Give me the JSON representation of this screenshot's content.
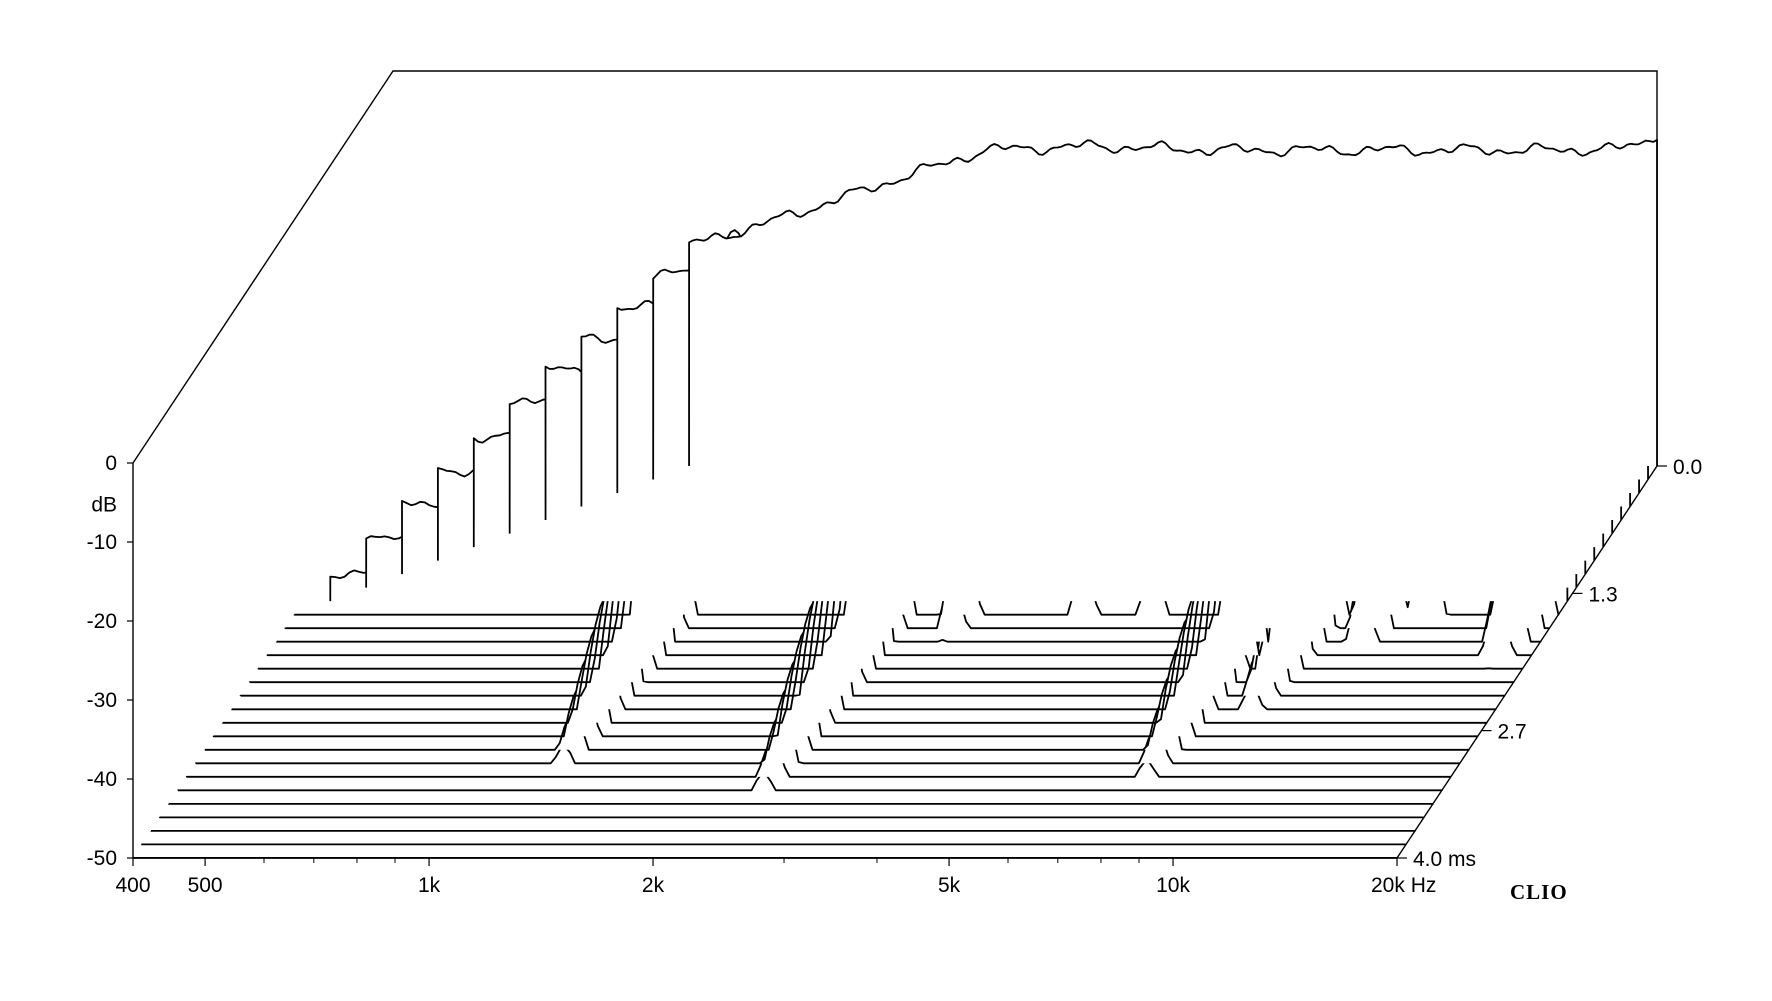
{
  "chart_data": {
    "type": "waterfall",
    "title": "",
    "x_axis": {
      "unit": "Hz",
      "scale": "log",
      "range": [
        400,
        20000
      ],
      "tick_labels": [
        {
          "value": 400,
          "label": "400"
        },
        {
          "value": 500,
          "label": "500"
        },
        {
          "value": 1000,
          "label": "1k"
        },
        {
          "value": 2000,
          "label": "2k"
        },
        {
          "value": 5000,
          "label": "5k"
        },
        {
          "value": 10000,
          "label": "10k"
        },
        {
          "value": 20000,
          "label": "20k Hz"
        }
      ],
      "minor_ticks": [
        600,
        700,
        800,
        900,
        3000,
        4000,
        6000,
        7000,
        8000,
        9000
      ]
    },
    "y_axis": {
      "unit": "dB",
      "label": "dB",
      "range": [
        -50,
        0
      ],
      "tick_labels": [
        {
          "value": 0,
          "label": "0"
        },
        {
          "value": -10,
          "label": "-10"
        },
        {
          "value": -20,
          "label": "-20"
        },
        {
          "value": -30,
          "label": "-30"
        },
        {
          "value": -40,
          "label": "-40"
        },
        {
          "value": -50,
          "label": "-50"
        }
      ]
    },
    "z_axis": {
      "unit": "ms",
      "range": [
        0.0,
        4.0
      ],
      "tick_labels": [
        {
          "value": 0.0,
          "label": "0.0"
        },
        {
          "value": 1.3,
          "label": "1.3"
        },
        {
          "value": 2.7,
          "label": "2.7"
        },
        {
          "value": 4.0,
          "label": "4.0  ms"
        }
      ]
    },
    "slices": {
      "count": 30,
      "time_step_ms": 0.1379,
      "floor_db": -50,
      "onset_hz_first": 1000,
      "onset_hz_last": 400,
      "onset_shift_slices": 11,
      "initial_response_db": [
        [
          1000,
          -22
        ],
        [
          1200,
          -20
        ],
        [
          1500,
          -17
        ],
        [
          2000,
          -13
        ],
        [
          2500,
          -10
        ],
        [
          3000,
          -9.7
        ],
        [
          3500,
          -9.5
        ],
        [
          4000,
          -9.7
        ],
        [
          5000,
          -10
        ],
        [
          7000,
          -10
        ],
        [
          10000,
          -10
        ],
        [
          15000,
          -10
        ],
        [
          18000,
          -9.8
        ],
        [
          19000,
          -9.3
        ],
        [
          20000,
          -7.8
        ]
      ],
      "notches": [
        [
          2100,
          4.5
        ],
        [
          3300,
          5.2
        ],
        [
          3700,
          4.0
        ],
        [
          5600,
          3.8
        ],
        [
          6800,
          3.5
        ],
        [
          8000,
          3.0
        ],
        [
          9000,
          2.8
        ],
        [
          11000,
          2.6
        ],
        [
          13000,
          2.5
        ],
        [
          15000,
          2.2
        ]
      ],
      "resonances": [
        {
          "hz": 1250,
          "start_ms": 0.41,
          "end_ms": 3.16,
          "peak_db": -15
        },
        {
          "hz": 2450,
          "start_ms": 0.55,
          "end_ms": 3.45,
          "peak_db": -16
        },
        {
          "hz": 3150,
          "start_ms": 0.28,
          "end_ms": 1.8,
          "peak_db": -12
        },
        {
          "hz": 4600,
          "start_ms": 0.28,
          "end_ms": 1.65,
          "peak_db": -13
        },
        {
          "hz": 5700,
          "start_ms": 0.41,
          "end_ms": 1.65,
          "peak_db": -15
        },
        {
          "hz": 6600,
          "start_ms": 0.55,
          "end_ms": 1.5,
          "peak_db": -17
        },
        {
          "hz": 7800,
          "start_ms": 0.69,
          "end_ms": 3.3,
          "peak_db": -19
        },
        {
          "hz": 9400,
          "start_ms": 0.83,
          "end_ms": 2.6,
          "peak_db": -19
        },
        {
          "hz": 11500,
          "start_ms": 0.96,
          "end_ms": 1.93,
          "peak_db": -22
        },
        {
          "hz": 13300,
          "start_ms": 1.1,
          "end_ms": 1.65,
          "peak_db": -24
        },
        {
          "hz": 18000,
          "start_ms": 1.24,
          "end_ms": 2.07,
          "peak_db": -26
        }
      ]
    }
  },
  "branding": {
    "text": "CLIO"
  }
}
